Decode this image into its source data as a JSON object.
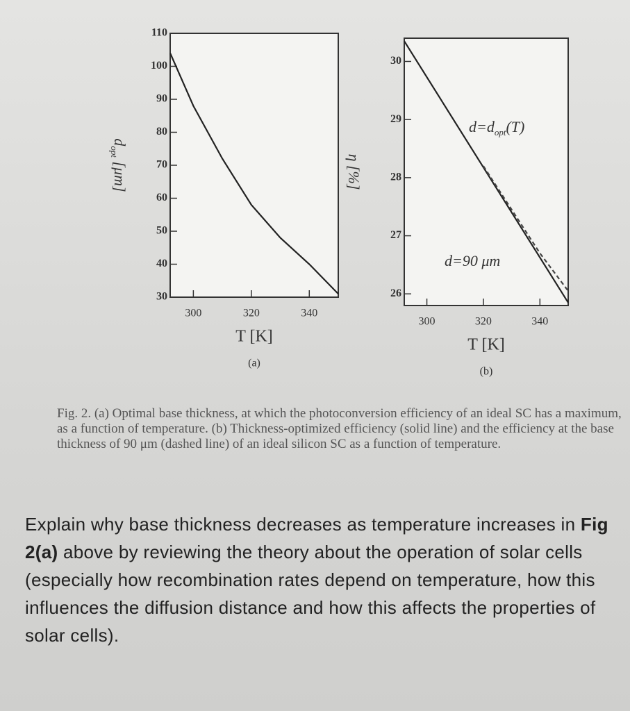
{
  "chart_data": [
    {
      "type": "line",
      "title": "(a)",
      "x_label": "T [K]",
      "y_label": [
        "d",
        "opt",
        " [μm]"
      ],
      "xlim": [
        292,
        350
      ],
      "ylim": [
        30,
        110
      ],
      "xticks": [
        300,
        320,
        340
      ],
      "yticks": [
        30,
        40,
        50,
        60,
        70,
        80,
        90,
        100,
        110
      ],
      "series": [
        {
          "color": "#222222",
          "dashed": false,
          "x": [
            292,
            300,
            310,
            320,
            330,
            340,
            350
          ],
          "values": [
            104,
            88,
            72,
            58,
            48,
            40,
            31
          ]
        }
      ],
      "annotations": []
    },
    {
      "type": "line",
      "title": "(b)",
      "x_label": "T [K]",
      "y_label": [
        "η",
        "",
        " [%]"
      ],
      "xlim": [
        292,
        350
      ],
      "ylim": [
        25.8,
        30.4
      ],
      "xticks": [
        300,
        320,
        340
      ],
      "yticks": [
        26,
        27,
        28,
        29,
        30
      ],
      "series": [
        {
          "color": "#222222",
          "dashed": false,
          "x": [
            292,
            350
          ],
          "values": [
            30.35,
            25.85
          ]
        },
        {
          "color": "#444444",
          "dashed": true,
          "x": [
            320,
            330,
            340,
            350
          ],
          "values": [
            28.2,
            27.45,
            26.7,
            26.05
          ]
        }
      ],
      "annotations": [
        [
          "d=d",
          "opt",
          "(T)"
        ],
        [
          "d=90 μm",
          "",
          ""
        ]
      ]
    }
  ],
  "caption": "Fig. 2. (a) Optimal base thickness, at which the photoconversion efficiency of an ideal SC has a maximum, as a function of temperature. (b) Thickness-optimized efficiency (solid line) and the efficiency at the base thickness of 90 μm (dashed line) of an ideal silicon SC as a function of temperature.",
  "question": [
    "Explain why base thickness decreases as temperature increases in ",
    "Fig 2(a)",
    " above by reviewing the theory about the operation of solar cells (especially how recombination rates depend on temperature, how this influences the diffusion distance and how this affects the properties of solar cells)."
  ]
}
